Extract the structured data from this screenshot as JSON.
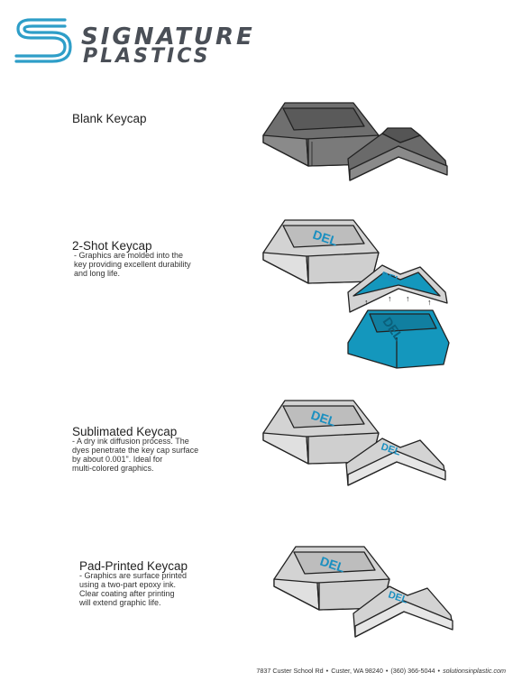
{
  "brand": {
    "line1": "SIGNATURE",
    "line2": "PLASTICS"
  },
  "sections": [
    {
      "title": "Blank Keycap",
      "description": ""
    },
    {
      "title": "2-Shot Keycap",
      "description": " - Graphics are molded into the\n   key providing excellent durability\n   and long life."
    },
    {
      "title": "Sublimated Keycap",
      "description": " - A dry ink diffusion process.  The\n   dyes penetrate the key cap surface\n   by about 0.001\". Ideal for\n   multi-colored graphics."
    },
    {
      "title": "Pad-Printed Keycap",
      "description": " - Graphics are surface printed\n   using a two-part epoxy ink.\n   Clear coating after printing\n   will extend graphic life."
    }
  ],
  "keycap_legend": "DEL",
  "colors": {
    "dark_cap": "#6f6f6f",
    "light_cap": "#d3d3d3",
    "legend_blue": "#1a8fc0",
    "insert_teal": "#1497bd"
  },
  "footer": {
    "address": "7837 Custer School Rd",
    "city": "Custer, WA  98240",
    "phone": "(360) 366-5044",
    "website": "solutionsinplastic.com"
  }
}
